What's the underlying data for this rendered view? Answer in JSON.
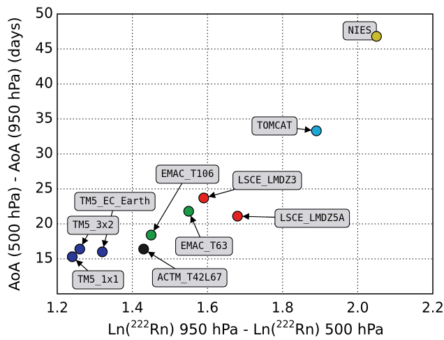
{
  "chart_data": {
    "type": "scatter",
    "xlabel_parts": [
      "Ln(",
      "222",
      "Rn) 950 hPa - Ln(",
      "222",
      "Rn) 500 hPa"
    ],
    "ylabel": "AoA (500 hPa) - AoA (950 hPa) (days)",
    "labels": [
      "NIES",
      "TOMCAT",
      "LSCE_LMDZ3",
      "LSCE_LMDZ5A",
      "EMAC_T63",
      "EMAC_T106",
      "ACTM_T42L67",
      "TM5_EC_Earth",
      "TM5_3x2",
      "TM5_1x1"
    ],
    "x": [
      2.05,
      1.89,
      1.59,
      1.68,
      1.55,
      1.45,
      1.43,
      1.32,
      1.26,
      1.24
    ],
    "values": [
      46.8,
      33.3,
      23.7,
      21.1,
      21.8,
      18.4,
      16.4,
      16.0,
      16.4,
      15.3
    ],
    "colors": [
      "#c9bb2e",
      "#1ea8d8",
      "#e32222",
      "#e32222",
      "#1a9a44",
      "#1a9a44",
      "#1a1a1a",
      "#2b3a98",
      "#2b3a98",
      "#2b3a98"
    ],
    "xlim": [
      1.2,
      2.2
    ],
    "ylim": [
      10,
      50
    ],
    "xticks": [
      1.2,
      1.4,
      1.6,
      1.8,
      {
        "value": 2,
        "label": "2.0"
      },
      2.2
    ],
    "yticks": [
      15,
      20,
      25,
      30,
      35,
      40,
      45,
      50
    ],
    "grid": true
  }
}
